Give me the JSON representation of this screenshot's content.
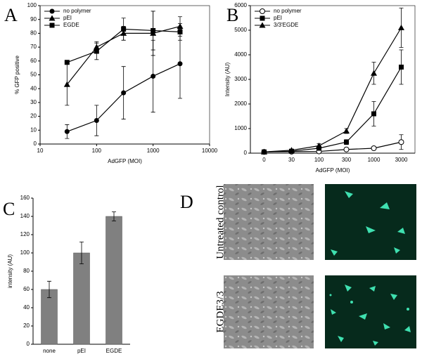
{
  "chart_data": [
    {
      "type": "line",
      "panel": "A",
      "xlabel": "AdGFP (MOI)",
      "ylabel": "% GFP positive",
      "x": [
        30,
        100,
        300,
        1000,
        3000
      ],
      "xscale": "log",
      "xlim": [
        10,
        10000
      ],
      "xticks": [
        10,
        100,
        1000,
        10000
      ],
      "ylim": [
        0,
        100
      ],
      "yticks": [
        0,
        10,
        20,
        30,
        40,
        50,
        60,
        70,
        80,
        90,
        100
      ],
      "legend": "upper-left",
      "series": [
        {
          "name": "no polymer",
          "color": "#000000",
          "marker": "circle",
          "values": [
            9,
            17,
            37,
            49,
            58
          ],
          "errors": [
            5,
            11,
            19,
            26,
            25
          ]
        },
        {
          "name": "pEI",
          "color": "#000000",
          "marker": "triangle",
          "values": [
            43,
            70,
            80,
            80,
            85
          ],
          "errors": [
            15,
            4,
            5,
            16,
            7
          ]
        },
        {
          "name": "EGDE",
          "color": "#000000",
          "marker": "square",
          "values": [
            59,
            67,
            83,
            82,
            81
          ],
          "errors": [
            0,
            6,
            8,
            14,
            6
          ]
        }
      ]
    },
    {
      "type": "line",
      "panel": "B",
      "xlabel": "AdGFP (MOI)",
      "ylabel": "Intensity (AU)",
      "categories": [
        "0",
        "30",
        "100",
        "300",
        "1000",
        "3000"
      ],
      "ylim": [
        0,
        6000
      ],
      "yticks": [
        0,
        1000,
        2000,
        3000,
        4000,
        5000,
        6000
      ],
      "legend": "upper-left",
      "series": [
        {
          "name": "no polymer",
          "color": "#000000",
          "marker": "open-circle",
          "values": [
            50,
            60,
            70,
            150,
            200,
            450
          ],
          "errors": [
            0,
            0,
            0,
            0,
            0,
            300
          ]
        },
        {
          "name": "pEI",
          "color": "#000000",
          "marker": "square",
          "values": [
            50,
            80,
            200,
            450,
            1600,
            3500
          ],
          "errors": [
            0,
            20,
            60,
            100,
            500,
            700
          ]
        },
        {
          "name": "3/3'EGDE",
          "color": "#000000",
          "marker": "triangle",
          "values": [
            50,
            120,
            300,
            900,
            3250,
            5100
          ],
          "errors": [
            0,
            30,
            80,
            100,
            450,
            800
          ]
        }
      ]
    },
    {
      "type": "bar",
      "panel": "C",
      "ylabel": "intensity (AU)",
      "categories": [
        "none",
        "pEI",
        "EGDE"
      ],
      "values": [
        60,
        100,
        140
      ],
      "errors": [
        9,
        12,
        5
      ],
      "color": "#808080",
      "ylim": [
        0,
        160
      ],
      "yticks": [
        0,
        20,
        40,
        60,
        80,
        100,
        120,
        140,
        160
      ]
    }
  ],
  "images": {
    "panel": "D",
    "rows": [
      {
        "label": "Untreated control"
      },
      {
        "label": "EGDE3/3"
      }
    ]
  }
}
